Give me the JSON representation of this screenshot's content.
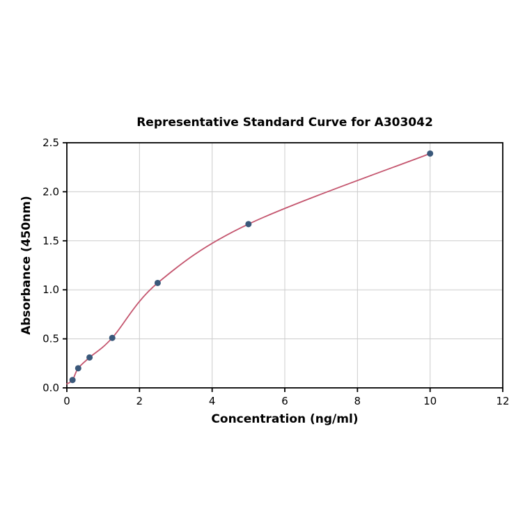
{
  "chart_data": {
    "type": "scatter",
    "title": "Representative Standard Curve for A303042",
    "xlabel": "Concentration (ng/ml)",
    "ylabel": "Absorbance (450nm)",
    "xlim": [
      0,
      12
    ],
    "ylim": [
      0.0,
      2.5
    ],
    "x_ticks": [
      0,
      2,
      4,
      6,
      8,
      10,
      12
    ],
    "x_tick_labels": [
      "0",
      "2",
      "4",
      "6",
      "8",
      "10",
      "12"
    ],
    "y_ticks": [
      0.0,
      0.5,
      1.0,
      1.5,
      2.0,
      2.5
    ],
    "y_tick_labels": [
      "0.0",
      "0.5",
      "1.0",
      "1.5",
      "2.0",
      "2.5"
    ],
    "grid": true,
    "legend": "none",
    "points": {
      "x": [
        0.156,
        0.3125,
        0.625,
        1.25,
        2.5,
        5,
        10
      ],
      "y": [
        0.08,
        0.2,
        0.31,
        0.51,
        1.07,
        1.67,
        2.39
      ]
    },
    "fit_curve": {
      "description": "smooth saturating standard-curve fit through the points, from x=0 to x=10",
      "y_at_zero": 0.04
    },
    "colors": {
      "curve": "#c4556e",
      "points": "#3a587a",
      "grid": "#cccccc",
      "axis": "#000000",
      "background": "#ffffff"
    }
  }
}
